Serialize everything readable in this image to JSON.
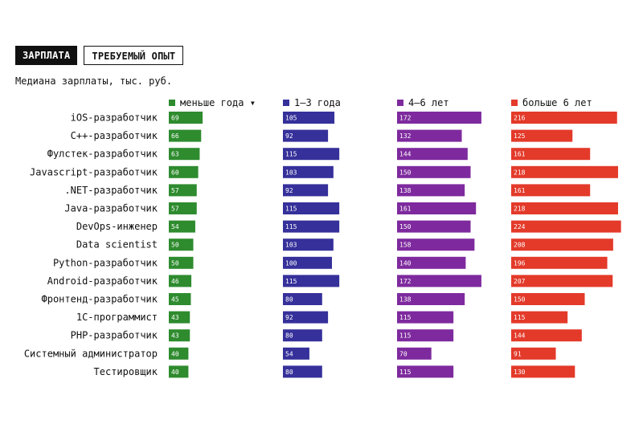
{
  "tabs": [
    {
      "label": "ЗАРПЛАТА",
      "active": true
    },
    {
      "label": "ТРЕБУЕМЫЙ ОПЫТ",
      "active": false
    }
  ],
  "subtitle": "Медиана зарплаты, тыс. руб.",
  "sort_indicator": "▾",
  "chart_data": {
    "type": "bar",
    "categories": [
      "iOS-разработчик",
      "C++-разработчик",
      "Фулстек-разработчик",
      "Javascript-разработчик",
      ".NET-разработчик",
      "Java-разработчик",
      "DevOps-инженер",
      "Data scientist",
      "Python-разработчик",
      "Android-разработчик",
      "Фронтенд-разработчик",
      "1С-программист",
      "PHP-разработчик",
      "Системный администратор",
      "Тестировщик"
    ],
    "series": [
      {
        "name": "меньше года",
        "color": "#2e8b2e",
        "values": [
          69,
          66,
          63,
          60,
          57,
          57,
          54,
          50,
          50,
          46,
          45,
          43,
          43,
          40,
          40
        ]
      },
      {
        "name": "1–3 года",
        "color": "#35309a",
        "values": [
          105,
          92,
          115,
          103,
          92,
          115,
          115,
          103,
          100,
          115,
          80,
          92,
          80,
          54,
          80
        ]
      },
      {
        "name": "4–6 лет",
        "color": "#7e2a9e",
        "values": [
          172,
          132,
          144,
          150,
          138,
          161,
          150,
          158,
          140,
          172,
          138,
          115,
          115,
          70,
          115
        ]
      },
      {
        "name": "больше 6 лет",
        "color": "#e33a2a",
        "values": [
          216,
          125,
          161,
          218,
          161,
          218,
          224,
          208,
          196,
          207,
          150,
          115,
          144,
          91,
          130
        ]
      }
    ],
    "legend_placement": "top"
  }
}
